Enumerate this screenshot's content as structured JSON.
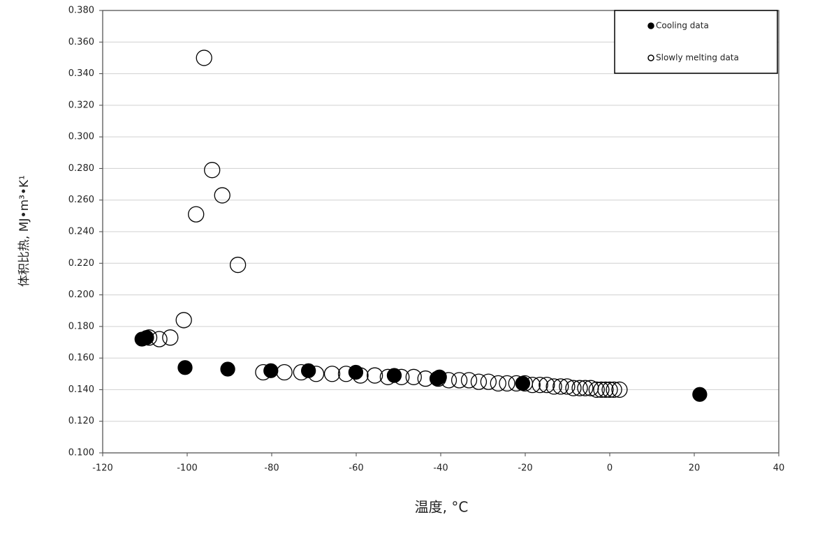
{
  "chart_data": {
    "type": "scatter",
    "xlabel": "温度, °C",
    "ylabel": "体积比热, MJ•m³•K¹",
    "xlim": [
      -120,
      40
    ],
    "xticks": [
      -120,
      -100,
      -80,
      -60,
      -40,
      -20,
      0,
      20,
      40
    ],
    "ylim": [
      0.1,
      0.38
    ],
    "yticks": [
      {
        "value": 0.1,
        "label": "0.100"
      },
      {
        "value": 0.12,
        "label": "0.120"
      },
      {
        "value": 0.14,
        "label": "0.140"
      },
      {
        "value": 0.16,
        "label": "0.160"
      },
      {
        "value": 0.18,
        "label": "0.180"
      },
      {
        "value": 0.2,
        "label": "0.200"
      },
      {
        "value": 0.22,
        "label": "0.220"
      },
      {
        "value": 0.24,
        "label": "0.240"
      },
      {
        "value": 0.26,
        "label": "0.260"
      },
      {
        "value": 0.28,
        "label": "0.280"
      },
      {
        "value": 0.3,
        "label": "0.300"
      },
      {
        "value": 0.32,
        "label": "0.320"
      },
      {
        "value": 0.34,
        "label": "0.340"
      },
      {
        "value": 0.36,
        "label": "0.360"
      },
      {
        "value": 0.38,
        "label": "0.380"
      }
    ],
    "grid": true,
    "legend": "upper right",
    "series": [
      {
        "name": "Slowly melting data",
        "color": "#000000",
        "filled": false,
        "x": [
          -96,
          -94.1,
          -91.7,
          -97.9,
          -88,
          -100.8,
          -104,
          -106.6,
          -109,
          -82,
          -77,
          -73,
          -69.5,
          -65.7,
          -62.4,
          -59,
          -55.6,
          -52.5,
          -49.3,
          -46.4,
          -43.6,
          -40.6,
          -38.1,
          -35.6,
          -33.3,
          -31,
          -28.7,
          -26.4,
          -24.3,
          -22.1,
          -20.1,
          -18.3,
          -16.5,
          -14.9,
          -13.2,
          -11.6,
          -10.1,
          -8.6,
          -7.1,
          -5.8,
          -4.5,
          -3.1,
          -2,
          -1,
          0,
          1,
          2.3
        ],
        "values": [
          0.35,
          0.279,
          0.263,
          0.251,
          0.219,
          0.184,
          0.173,
          0.172,
          0.173,
          0.151,
          0.151,
          0.151,
          0.15,
          0.15,
          0.15,
          0.149,
          0.149,
          0.148,
          0.148,
          0.148,
          0.147,
          0.147,
          0.146,
          0.146,
          0.146,
          0.145,
          0.145,
          0.144,
          0.144,
          0.144,
          0.144,
          0.143,
          0.143,
          0.143,
          0.142,
          0.142,
          0.142,
          0.141,
          0.141,
          0.141,
          0.141,
          0.14,
          0.14,
          0.14,
          0.14,
          0.14,
          0.14
        ]
      },
      {
        "name": "Cooling data",
        "color": "#000000",
        "filled": true,
        "x": [
          -110.7,
          -109.6,
          -100.5,
          -90.4,
          -80.2,
          -71.3,
          -60.1,
          -51,
          -40.9,
          -40.3,
          -20.6,
          21.3
        ],
        "values": [
          0.172,
          0.173,
          0.154,
          0.153,
          0.152,
          0.152,
          0.151,
          0.149,
          0.147,
          0.148,
          0.144,
          0.137
        ]
      }
    ]
  }
}
